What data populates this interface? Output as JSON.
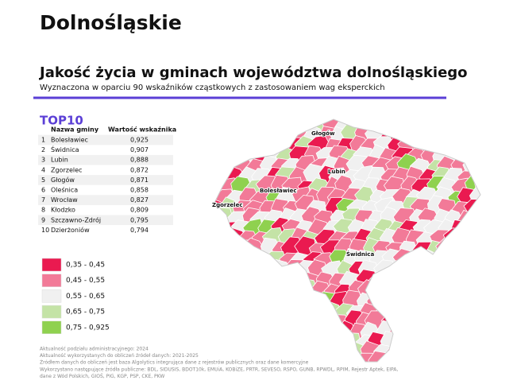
{
  "header": {
    "title": "Dolnośląskie"
  },
  "map_title": "Jakość życia w gminach województwa dolnośląskiego",
  "map_subtitle": "Wyznaczona w oparciu 90 wskaźników cząstkowych z zastosowaniem wag eksperckich",
  "top10": {
    "title": "TOP10",
    "columns": [
      "Nazwa gminy",
      "Wartość wskaźnika"
    ],
    "rows": [
      [
        "1",
        "Bolesławiec",
        "0,925"
      ],
      [
        "2",
        "Świdnica",
        "0,907"
      ],
      [
        "3",
        "Lubin",
        "0,888"
      ],
      [
        "4",
        "Zgorzelec",
        "0,872"
      ],
      [
        "5",
        "Głogów",
        "0,871"
      ],
      [
        "6",
        "Oleśnica",
        "0,858"
      ],
      [
        "7",
        "Wrocław",
        "0,827"
      ],
      [
        "8",
        "Kłodzko",
        "0,809"
      ],
      [
        "9",
        "Szczawno-Zdrój",
        "0,795"
      ],
      [
        "10",
        "Dzierżoniów",
        "0,794"
      ]
    ]
  },
  "legend": [
    {
      "label": "0,35 - 0,45",
      "color": "#ea1a50"
    },
    {
      "label": "0,45 - 0,55",
      "color": "#f27a98"
    },
    {
      "label": "0,55 - 0,65",
      "color": "#f0f0f0"
    },
    {
      "label": "0,65 - 0,75",
      "color": "#c4e3a6"
    },
    {
      "label": "0,75 - 0,925",
      "color": "#8fd14f"
    }
  ],
  "city_labels": [
    "Głogów",
    "Lubin",
    "Bolesławiec",
    "Zgorzelec",
    "Świdnica"
  ],
  "footnotes": [
    "Aktualność podziału administracyjnego: 2024",
    "Aktualność wykorzystanych do obliczeń źródeł danych: 2021-2025",
    "Źródłem danych do obliczeń jest baza Algolytics integrująca dane z rejestrów publicznych oraz dane komercyjne",
    "Wykorzystano następujące źródła publiczne: BDL, SIDUSIS, BDOT10k, EMUiA, KOBiZE, PRTR, SEVESO, RSPO, GUNB, RPWDL, RPIM, Rejestr Aptek, EIPA,",
    "dane z Wód Polskich, GIOŚ, PIG, KGP, PSP, CKE, PKW"
  ]
}
